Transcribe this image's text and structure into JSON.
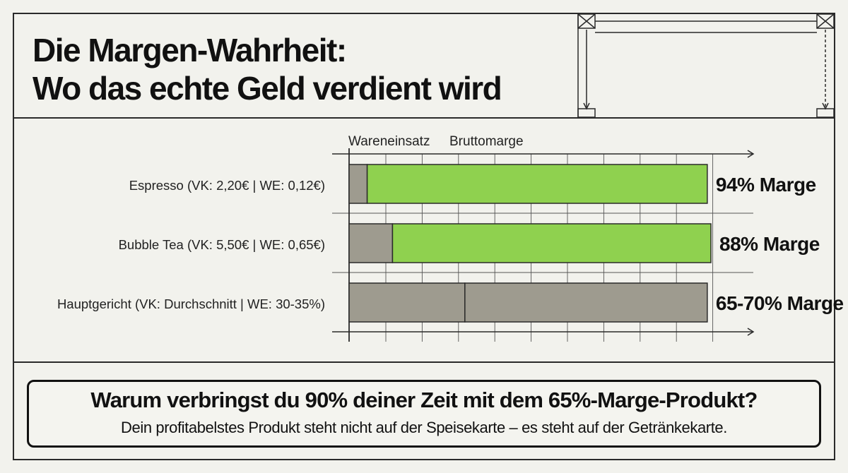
{
  "title_line1": "Die Margen-Wahrheit:",
  "title_line2": "Wo das echte Geld verdient wird",
  "chart_data": {
    "type": "bar",
    "orientation": "horizontal",
    "stacked": true,
    "legend": [
      "Wareneinsatz",
      "Bruttomarge"
    ],
    "legend_placement": "top-left",
    "categories": [
      "Espresso (VK: 2,20€ | WE: 0,12€)",
      "Bubble Tea (VK: 5,50€ | WE: 0,65€)",
      "Hauptgericht (VK: Durchschnitt | WE: 30-35%)"
    ],
    "series": [
      {
        "name": "Wareneinsatz",
        "values": [
          5,
          12,
          32
        ]
      },
      {
        "name": "Bruttomarge",
        "values": [
          94,
          88,
          67
        ]
      }
    ],
    "bar_labels": [
      "94% Marge",
      "88% Marge",
      "65-70% Marge"
    ],
    "bar_colors": [
      [
        "#9e9b8f",
        "#8fd14f"
      ],
      [
        "#9e9b8f",
        "#8fd14f"
      ],
      [
        "#9e9b8f",
        "#9e9b8f"
      ]
    ],
    "grid": true,
    "xlim": [
      0,
      100
    ]
  },
  "callout": {
    "question": "Warum verbringst du 90% deiner Zeit mit dem 65%-Marge-Produkt?",
    "subline": "Dein profitabelstes Produkt steht nicht auf der Speisekarte – es steht auf der Getränkekarte."
  },
  "colors": {
    "background": "#f2f2ed",
    "cost": "#9e9b8f",
    "margin": "#8fd14f",
    "ink": "#111111"
  }
}
